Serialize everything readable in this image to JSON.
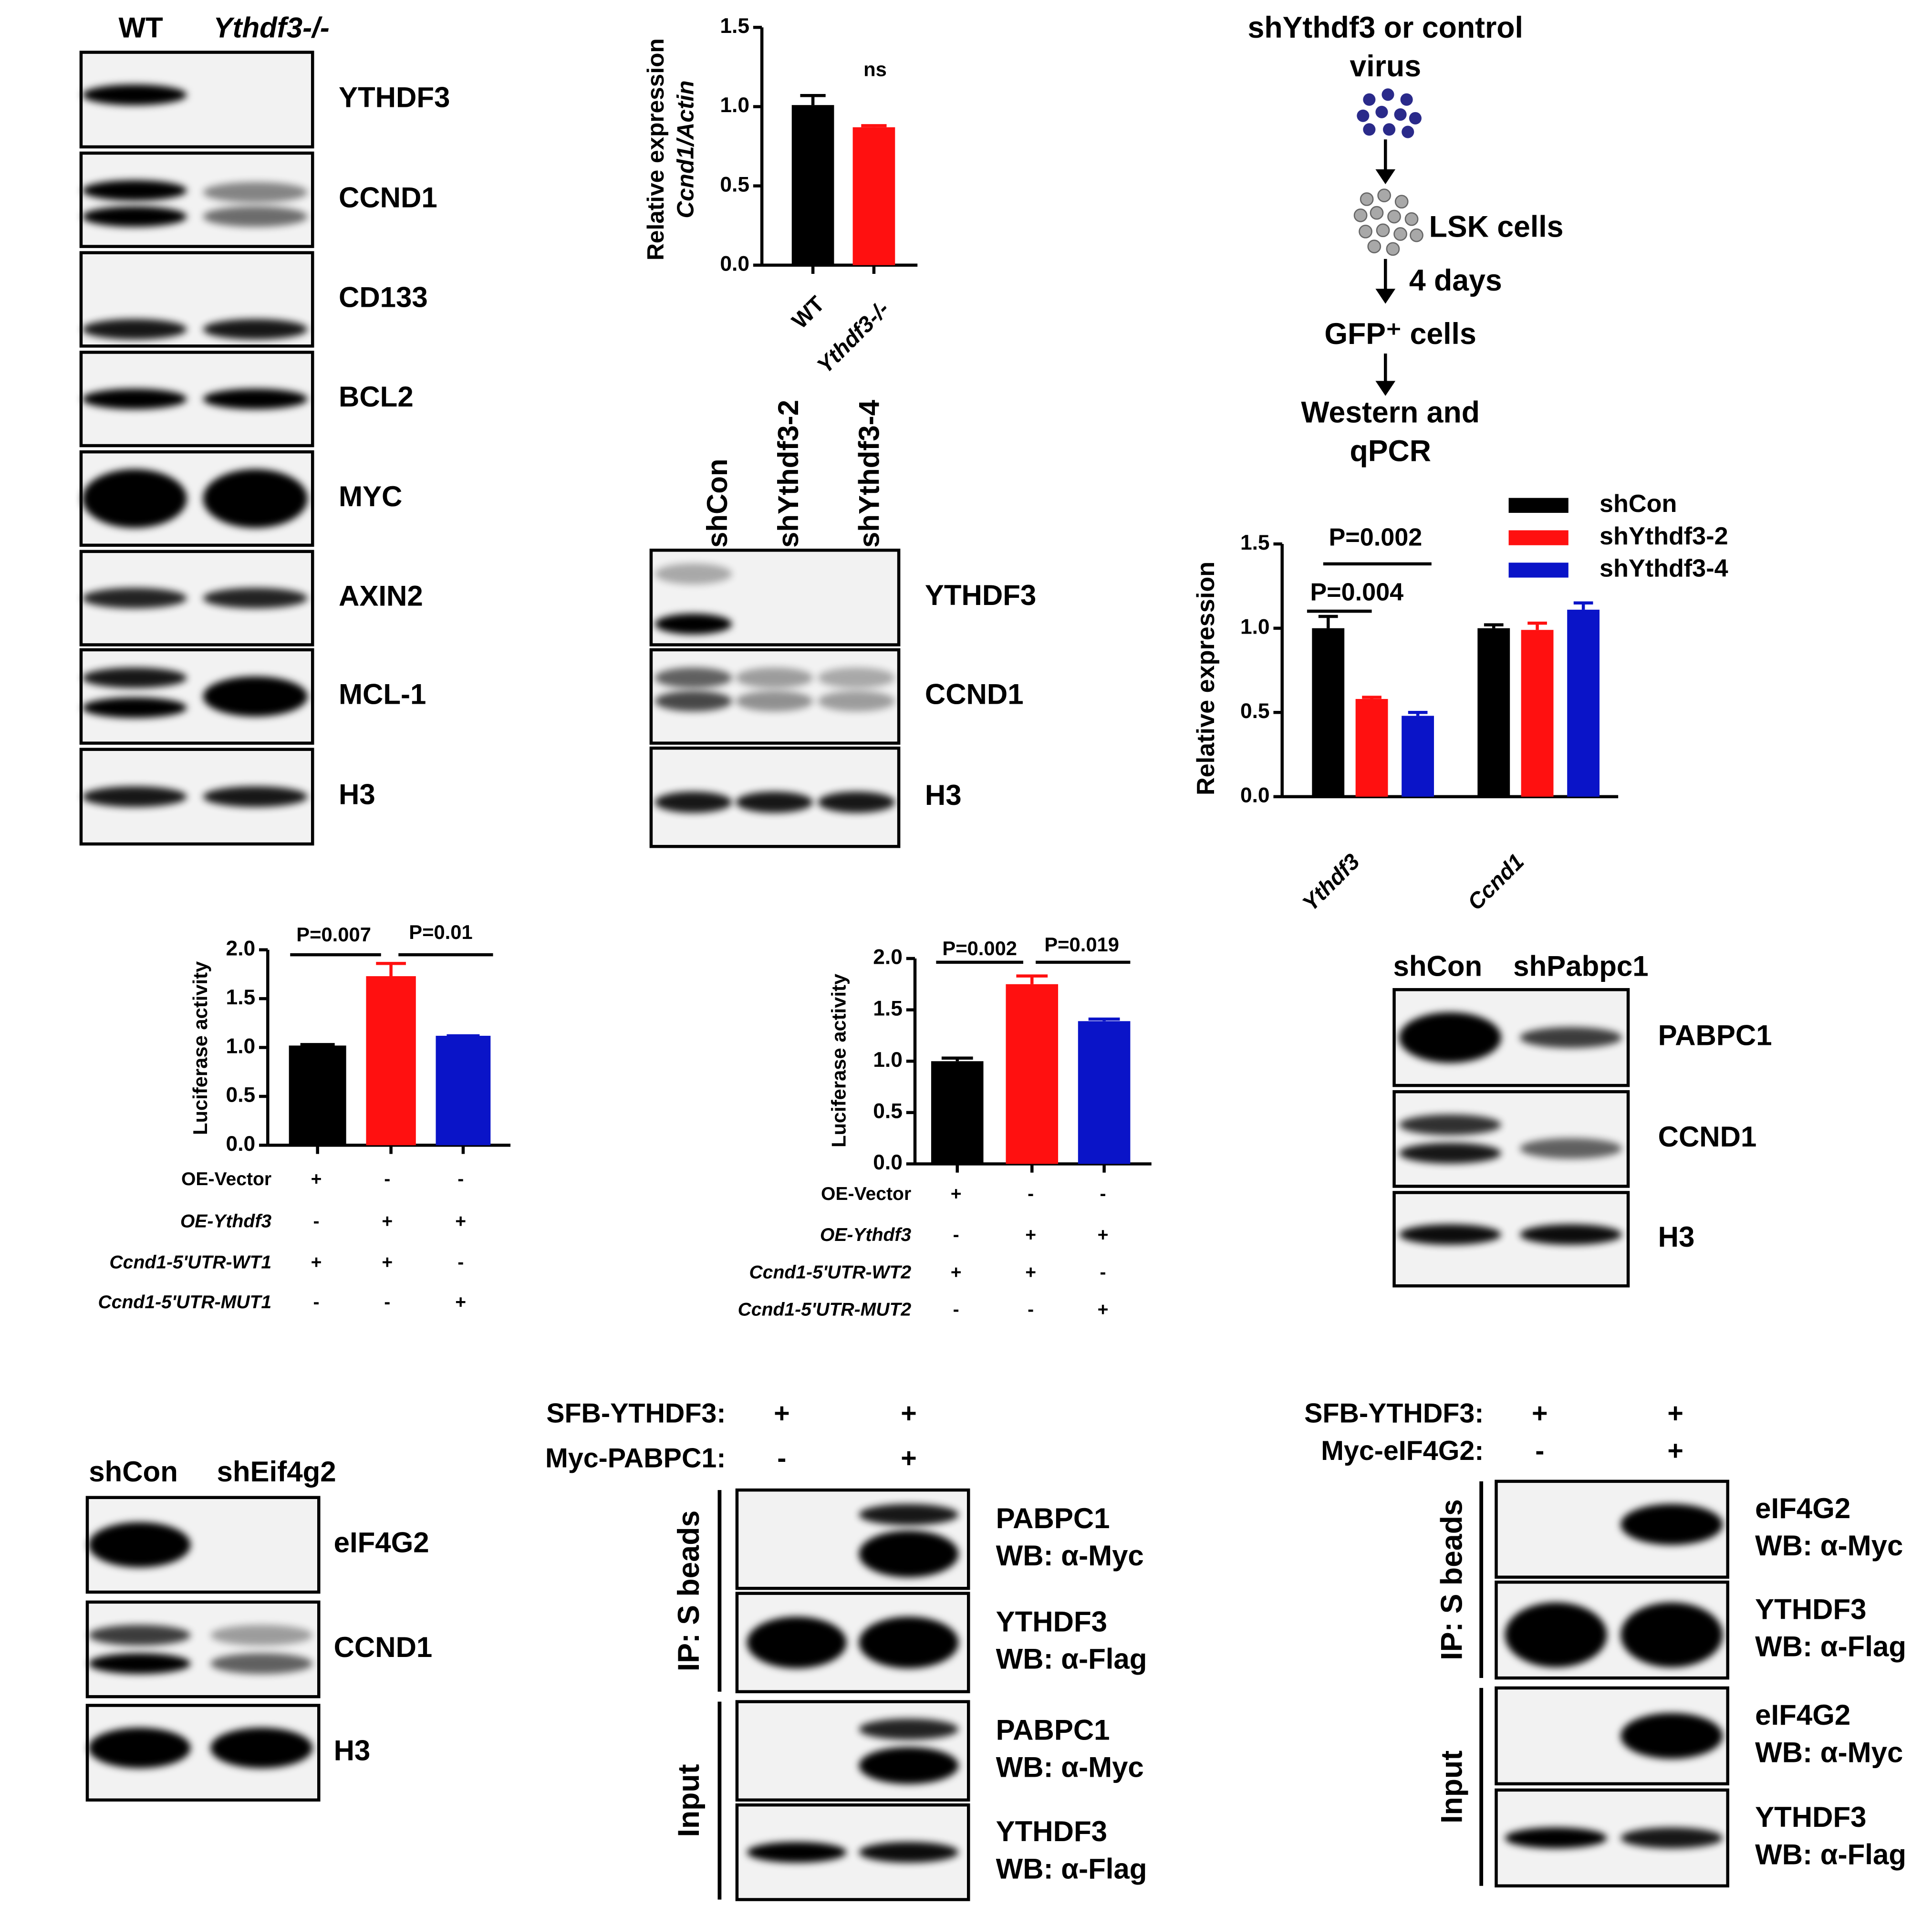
{
  "chart_data": [
    {
      "type": "bar",
      "ylabel": [
        "Relative expression",
        "Ccnd1/Actin"
      ],
      "categories": [
        "WT",
        "Ythdf3-/-"
      ],
      "values": [
        1.01,
        0.87
      ],
      "errors": [
        0.06,
        0.01
      ],
      "colors": [
        "#000000",
        "#ff1010"
      ],
      "ylim": [
        0,
        1.5
      ],
      "yticks": [
        {
          "value": 0,
          "label": "0.0"
        },
        0.5,
        {
          "value": 1,
          "label": "1.0"
        },
        1.5
      ],
      "annotations": [
        "ns"
      ]
    },
    {
      "type": "grouped-bar",
      "ylabel": [
        "Relative expression"
      ],
      "categories": [
        "Ythdf3",
        "Ccnd1"
      ],
      "series": [
        {
          "name": "shCon",
          "color": "#000000",
          "values": [
            1.0,
            1.0
          ],
          "errors": [
            0.07,
            0.02
          ]
        },
        {
          "name": "shYthdf3-2",
          "color": "#ff1010",
          "values": [
            0.58,
            0.99
          ],
          "errors": [
            0.01,
            0.04
          ]
        },
        {
          "name": "shYthdf3-4",
          "color": "#0a14c8",
          "values": [
            0.48,
            1.11
          ],
          "errors": [
            0.02,
            0.04
          ]
        }
      ],
      "ylim": [
        0,
        1.5
      ],
      "yticks": [
        {
          "value": 0,
          "label": "0.0"
        },
        0.5,
        {
          "value": 1,
          "label": "1.0"
        },
        1.5
      ],
      "annotations": [
        "P=0.002",
        "P=0.004"
      ]
    },
    {
      "type": "bar",
      "ylabel": [
        "Luciferase activity"
      ],
      "values": [
        1.02,
        1.73,
        1.12
      ],
      "errors": [
        0.01,
        0.13,
        0
      ],
      "colors": [
        "#000000",
        "#ff1010",
        "#0a14c8"
      ],
      "ylim": [
        0,
        2
      ],
      "yticks": [
        {
          "value": 0,
          "label": "0.0"
        },
        0.5,
        {
          "value": 1,
          "label": "1.0"
        },
        1.5,
        {
          "value": 2,
          "label": "2.0"
        }
      ],
      "annotations": [
        "P=0.007",
        "P=0.01"
      ],
      "conditions": [
        {
          "label": "OE-Vector",
          "marks": [
            "+",
            "-",
            "-"
          ]
        },
        {
          "label": "OE-Ythdf3",
          "marks": [
            "-",
            "+",
            "+"
          ]
        },
        {
          "label": "Ccnd1-5'UTR-WT1",
          "marks": [
            "+",
            "+",
            "-"
          ]
        },
        {
          "label": "Ccnd1-5'UTR-MUT1",
          "marks": [
            "-",
            "-",
            "+"
          ]
        }
      ]
    },
    {
      "type": "bar",
      "ylabel": [
        "Luciferase activity"
      ],
      "values": [
        1.0,
        1.75,
        1.39
      ],
      "errors": [
        0.03,
        0.08,
        0.02
      ],
      "colors": [
        "#000000",
        "#ff1010",
        "#0a14c8"
      ],
      "ylim": [
        0,
        2
      ],
      "yticks": [
        {
          "value": 0,
          "label": "0.0"
        },
        0.5,
        {
          "value": 1,
          "label": "1.0"
        },
        1.5,
        {
          "value": 2,
          "label": "2.0"
        }
      ],
      "annotations": [
        "P=0.002",
        "P=0.019"
      ],
      "conditions": [
        {
          "label": "OE-Vector",
          "marks": [
            "+",
            "-",
            "-"
          ]
        },
        {
          "label": "OE-Ythdf3",
          "marks": [
            "-",
            "+",
            "+"
          ]
        },
        {
          "label": "Ccnd1-5'UTR-WT2",
          "marks": [
            "+",
            "+",
            "-"
          ]
        },
        {
          "label": "Ccnd1-5'UTR-MUT2",
          "marks": [
            "-",
            "-",
            "+"
          ]
        }
      ]
    }
  ],
  "blots": [
    {
      "lanes": [
        "WT",
        "Ythdf3-/-"
      ],
      "rows": [
        {
          "label": "YTHDF3"
        },
        {
          "label": "CCND1"
        },
        {
          "label": "CD133"
        },
        {
          "label": "BCL2"
        },
        {
          "label": "MYC"
        },
        {
          "label": "AXIN2"
        },
        {
          "label": "MCL-1"
        },
        {
          "label": "H3"
        }
      ]
    },
    {
      "lanes": [
        "shCon",
        "shYthdf3-2",
        "shYthdf3-4"
      ],
      "rows": [
        {
          "label": "YTHDF3"
        },
        {
          "label": "CCND1"
        },
        {
          "label": "H3"
        }
      ]
    },
    {
      "lanes": [
        "shCon",
        "shPabpc1"
      ],
      "rows": [
        {
          "label": "PABPC1"
        },
        {
          "label": "CCND1"
        },
        {
          "label": "H3"
        }
      ]
    },
    {
      "lanes": [
        "shCon",
        "shEif4g2"
      ],
      "rows": [
        {
          "label": "eIF4G2"
        },
        {
          "label": "CCND1"
        },
        {
          "label": "H3"
        }
      ]
    },
    {
      "conditions": [
        {
          "label": "SFB-YTHDF3:",
          "marks": [
            "+",
            "+"
          ]
        },
        {
          "label": "Myc-PABPC1:",
          "marks": [
            "-",
            "+"
          ]
        }
      ],
      "groups": [
        "IP: S beads",
        "Input"
      ],
      "rows": [
        {
          "label": [
            "PABPC1",
            "WB: α-Myc"
          ]
        },
        {
          "label": [
            "YTHDF3",
            "WB: α-Flag"
          ]
        },
        {
          "label": [
            "PABPC1",
            "WB: α-Myc"
          ]
        },
        {
          "label": [
            "YTHDF3",
            "WB: α-Flag"
          ]
        }
      ]
    },
    {
      "conditions": [
        {
          "label": "SFB-YTHDF3:",
          "marks": [
            "+",
            "+"
          ]
        },
        {
          "label": "Myc-eIF4G2:",
          "marks": [
            "-",
            "+"
          ]
        }
      ],
      "groups": [
        "IP: S beads",
        "Input"
      ],
      "rows": [
        {
          "label": [
            "eIF4G2",
            "WB: α-Myc"
          ]
        },
        {
          "label": [
            "YTHDF3",
            "WB: α-Flag"
          ]
        },
        {
          "label": [
            "eIF4G2",
            "WB: α-Myc"
          ]
        },
        {
          "label": [
            "YTHDF3",
            "WB: α-Flag"
          ]
        }
      ]
    }
  ],
  "diagram": {
    "steps": [
      "shYthdf3 or control",
      "virus",
      "LSK cells",
      "4 days",
      "GFP⁺ cells",
      "Western and",
      "qPCR"
    ]
  }
}
